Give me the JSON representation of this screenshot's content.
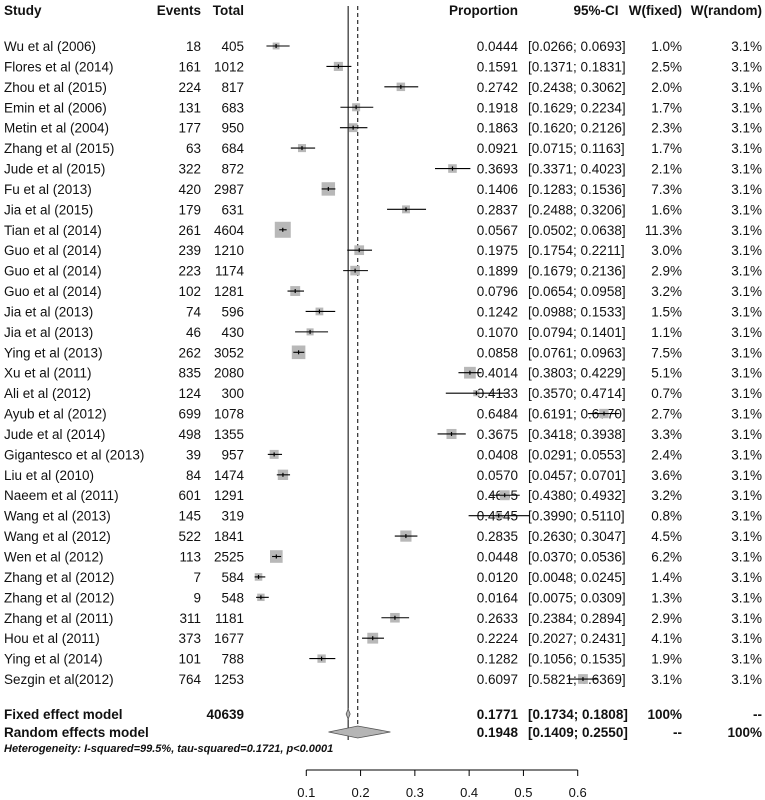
{
  "chart_data": {
    "type": "forest",
    "headers": {
      "study": "Study",
      "events": "Events",
      "total": "Total",
      "proportion": "Proportion",
      "ci": "95%-CI",
      "w_fixed": "W(fixed)",
      "w_random": "W(random)"
    },
    "studies": [
      {
        "study": "Wu et al (2006)",
        "events": "18",
        "total": "405",
        "prop": 0.0444,
        "lo": 0.0266,
        "hi": 0.0693,
        "proportion": "0.0444",
        "ci": "[0.0266; 0.0693]",
        "w_fixed": "1.0%",
        "w_random": "3.1%"
      },
      {
        "study": "Flores et al (2014)",
        "events": "161",
        "total": "1012",
        "prop": 0.1591,
        "lo": 0.1371,
        "hi": 0.1831,
        "proportion": "0.1591",
        "ci": "[0.1371; 0.1831]",
        "w_fixed": "2.5%",
        "w_random": "3.1%"
      },
      {
        "study": "Zhou et al (2015)",
        "events": "224",
        "total": "817",
        "prop": 0.2742,
        "lo": 0.2438,
        "hi": 0.3062,
        "proportion": "0.2742",
        "ci": "[0.2438; 0.3062]",
        "w_fixed": "2.0%",
        "w_random": "3.1%"
      },
      {
        "study": "Emin et al (2006)",
        "events": "131",
        "total": "683",
        "prop": 0.1918,
        "lo": 0.1629,
        "hi": 0.2234,
        "proportion": "0.1918",
        "ci": "[0.1629; 0.2234]",
        "w_fixed": "1.7%",
        "w_random": "3.1%"
      },
      {
        "study": "Metin et al (2004)",
        "events": "177",
        "total": "950",
        "prop": 0.1863,
        "lo": 0.162,
        "hi": 0.2126,
        "proportion": "0.1863",
        "ci": "[0.1620; 0.2126]",
        "w_fixed": "2.3%",
        "w_random": "3.1%"
      },
      {
        "study": "Zhang et al (2015)",
        "events": "63",
        "total": "684",
        "prop": 0.0921,
        "lo": 0.0715,
        "hi": 0.1163,
        "proportion": "0.0921",
        "ci": "[0.0715; 0.1163]",
        "w_fixed": "1.7%",
        "w_random": "3.1%"
      },
      {
        "study": "Jude et al (2015)",
        "events": "322",
        "total": "872",
        "prop": 0.3693,
        "lo": 0.3371,
        "hi": 0.4023,
        "proportion": "0.3693",
        "ci": "[0.3371; 0.4023]",
        "w_fixed": "2.1%",
        "w_random": "3.1%"
      },
      {
        "study": "Fu et al (2013)",
        "events": "420",
        "total": "2987",
        "prop": 0.1406,
        "lo": 0.1283,
        "hi": 0.1536,
        "proportion": "0.1406",
        "ci": "[0.1283; 0.1536]",
        "w_fixed": "7.3%",
        "w_random": "3.1%"
      },
      {
        "study": "Jia et al (2015)",
        "events": "179",
        "total": "631",
        "prop": 0.2837,
        "lo": 0.2488,
        "hi": 0.3206,
        "proportion": "0.2837",
        "ci": "[0.2488; 0.3206]",
        "w_fixed": "1.6%",
        "w_random": "3.1%"
      },
      {
        "study": "Tian et al (2014)",
        "events": "261",
        "total": "4604",
        "prop": 0.0567,
        "lo": 0.0502,
        "hi": 0.0638,
        "proportion": "0.0567",
        "ci": "[0.0502; 0.0638]",
        "w_fixed": "11.3%",
        "w_random": "3.1%"
      },
      {
        "study": "Guo et al (2014)",
        "events": "239",
        "total": "1210",
        "prop": 0.1975,
        "lo": 0.1754,
        "hi": 0.2211,
        "proportion": "0.1975",
        "ci": "[0.1754; 0.2211]",
        "w_fixed": "3.0%",
        "w_random": "3.1%"
      },
      {
        "study": "Guo et al (2014)",
        "events": "223",
        "total": "1174",
        "prop": 0.1899,
        "lo": 0.1679,
        "hi": 0.2136,
        "proportion": "0.1899",
        "ci": "[0.1679; 0.2136]",
        "w_fixed": "2.9%",
        "w_random": "3.1%"
      },
      {
        "study": "Guo et al (2014)",
        "events": "102",
        "total": "1281",
        "prop": 0.0796,
        "lo": 0.0654,
        "hi": 0.0958,
        "proportion": "0.0796",
        "ci": "[0.0654; 0.0958]",
        "w_fixed": "3.2%",
        "w_random": "3.1%"
      },
      {
        "study": "Jia et al (2013)",
        "events": "74",
        "total": "596",
        "prop": 0.1242,
        "lo": 0.0988,
        "hi": 0.1533,
        "proportion": "0.1242",
        "ci": "[0.0988; 0.1533]",
        "w_fixed": "1.5%",
        "w_random": "3.1%"
      },
      {
        "study": "Jia et al (2013)",
        "events": "46",
        "total": "430",
        "prop": 0.107,
        "lo": 0.0794,
        "hi": 0.1401,
        "proportion": "0.1070",
        "ci": "[0.0794; 0.1401]",
        "w_fixed": "1.1%",
        "w_random": "3.1%"
      },
      {
        "study": "Ying et al (2013)",
        "events": "262",
        "total": "3052",
        "prop": 0.0858,
        "lo": 0.0761,
        "hi": 0.0963,
        "proportion": "0.0858",
        "ci": "[0.0761; 0.0963]",
        "w_fixed": "7.5%",
        "w_random": "3.1%"
      },
      {
        "study": "Xu et al (2011)",
        "events": "835",
        "total": "2080",
        "prop": 0.4014,
        "lo": 0.3803,
        "hi": 0.4229,
        "proportion": "0.4014",
        "ci": "[0.3803; 0.4229]",
        "w_fixed": "5.1%",
        "w_random": "3.1%"
      },
      {
        "study": "Ali et al (2012)",
        "events": "124",
        "total": "300",
        "prop": 0.4133,
        "lo": 0.357,
        "hi": 0.4714,
        "proportion": "0.4133",
        "ci": "[0.3570; 0.4714]",
        "w_fixed": "0.7%",
        "w_random": "3.1%"
      },
      {
        "study": "Ayub et al (2012)",
        "events": "699",
        "total": "1078",
        "prop": 0.6484,
        "lo": 0.6191,
        "hi": 0.677,
        "proportion": "0.6484",
        "ci": "[0.6191; 0.6770]",
        "w_fixed": "2.7%",
        "w_random": "3.1%"
      },
      {
        "study": "Jude et al (2014)",
        "events": "498",
        "total": "1355",
        "prop": 0.3675,
        "lo": 0.3418,
        "hi": 0.3938,
        "proportion": "0.3675",
        "ci": "[0.3418; 0.3938]",
        "w_fixed": "3.3%",
        "w_random": "3.1%"
      },
      {
        "study": "Gigantesco et al (2013)",
        "events": "39",
        "total": "957",
        "prop": 0.0408,
        "lo": 0.0291,
        "hi": 0.0553,
        "proportion": "0.0408",
        "ci": "[0.0291; 0.0553]",
        "w_fixed": "2.4%",
        "w_random": "3.1%"
      },
      {
        "study": "Liu et al (2010)",
        "events": "84",
        "total": "1474",
        "prop": 0.057,
        "lo": 0.0457,
        "hi": 0.0701,
        "proportion": "0.0570",
        "ci": "[0.0457; 0.0701]",
        "w_fixed": "3.6%",
        "w_random": "3.1%"
      },
      {
        "study": "Naeem et al (2011)",
        "events": "601",
        "total": "1291",
        "prop": 0.4655,
        "lo": 0.438,
        "hi": 0.4932,
        "proportion": "0.4655",
        "ci": "[0.4380; 0.4932]",
        "w_fixed": "3.2%",
        "w_random": "3.1%"
      },
      {
        "study": "Wang et al (2013)",
        "events": "145",
        "total": "319",
        "prop": 0.4545,
        "lo": 0.399,
        "hi": 0.511,
        "proportion": "0.4545",
        "ci": "[0.3990; 0.5110]",
        "w_fixed": "0.8%",
        "w_random": "3.1%"
      },
      {
        "study": "Wang et al (2012)",
        "events": "522",
        "total": "1841",
        "prop": 0.2835,
        "lo": 0.263,
        "hi": 0.3047,
        "proportion": "0.2835",
        "ci": "[0.2630; 0.3047]",
        "w_fixed": "4.5%",
        "w_random": "3.1%"
      },
      {
        "study": "Wen et al (2012)",
        "events": "113",
        "total": "2525",
        "prop": 0.0448,
        "lo": 0.037,
        "hi": 0.0536,
        "proportion": "0.0448",
        "ci": "[0.0370; 0.0536]",
        "w_fixed": "6.2%",
        "w_random": "3.1%"
      },
      {
        "study": "Zhang et al (2012)",
        "events": "7",
        "total": "584",
        "prop": 0.012,
        "lo": 0.0048,
        "hi": 0.0245,
        "proportion": "0.0120",
        "ci": "[0.0048; 0.0245]",
        "w_fixed": "1.4%",
        "w_random": "3.1%"
      },
      {
        "study": "Zhang et al (2012)",
        "events": "9",
        "total": "548",
        "prop": 0.0164,
        "lo": 0.0075,
        "hi": 0.0309,
        "proportion": "0.0164",
        "ci": "[0.0075; 0.0309]",
        "w_fixed": "1.3%",
        "w_random": "3.1%"
      },
      {
        "study": "Zhang et al (2011)",
        "events": "311",
        "total": "1181",
        "prop": 0.2633,
        "lo": 0.2384,
        "hi": 0.2894,
        "proportion": "0.2633",
        "ci": "[0.2384; 0.2894]",
        "w_fixed": "2.9%",
        "w_random": "3.1%"
      },
      {
        "study": "Hou  et al (2011)",
        "events": "373",
        "total": "1677",
        "prop": 0.2224,
        "lo": 0.2027,
        "hi": 0.2431,
        "proportion": "0.2224",
        "ci": "[0.2027; 0.2431]",
        "w_fixed": "4.1%",
        "w_random": "3.1%"
      },
      {
        "study": "Ying et al (2014)",
        "events": "101",
        "total": "788",
        "prop": 0.1282,
        "lo": 0.1056,
        "hi": 0.1535,
        "proportion": "0.1282",
        "ci": "[0.1056; 0.1535]",
        "w_fixed": "1.9%",
        "w_random": "3.1%"
      },
      {
        "study": "Sezgin et al(2012)",
        "events": "764",
        "total": "1253",
        "prop": 0.6097,
        "lo": 0.5821,
        "hi": 0.6369,
        "proportion": "0.6097",
        "ci": "[0.5821; 0.6369]",
        "w_fixed": "3.1%",
        "w_random": "3.1%"
      }
    ],
    "fixed_model": {
      "label": "Fixed effect model",
      "total": "40639",
      "prop": 0.1771,
      "lo": 0.1734,
      "hi": 0.1808,
      "proportion": "0.1771",
      "ci": "[0.1734; 0.1808]",
      "w_fixed": "100%",
      "w_random": "--"
    },
    "random_model": {
      "label": "Random effects model",
      "prop": 0.1948,
      "lo": 0.1409,
      "hi": 0.255,
      "proportion": "0.1948",
      "ci": "[0.1409; 0.2550]",
      "w_fixed": "--",
      "w_random": "100%"
    },
    "heterogeneity": "Heterogeneity: I-squared=99.5%, tau-squared=0.1721, p<0.0001",
    "x_ticks": [
      0.1,
      0.2,
      0.3,
      0.4,
      0.5,
      0.6
    ],
    "x_tick_labels": [
      "0.1",
      "0.2",
      "0.3",
      "0.4",
      "0.5",
      "0.6"
    ],
    "xlim": [
      0.0,
      0.7
    ],
    "colors": {
      "box": "#b8b8b8",
      "line": "#000000",
      "diamond": "#b5b5b5"
    }
  }
}
